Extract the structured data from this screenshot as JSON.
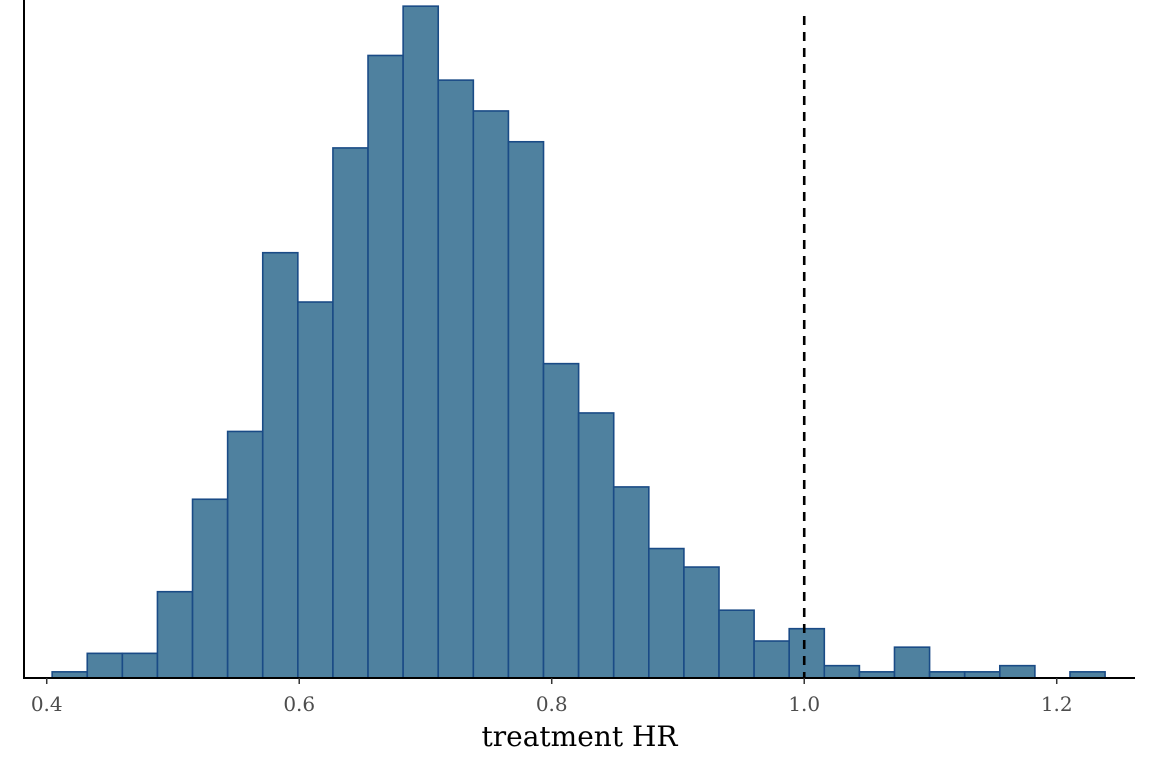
{
  "chart_data": {
    "type": "bar",
    "title": "",
    "xlabel": "treatment HR",
    "ylabel": "",
    "xlim": [
      0.382,
      1.262
    ],
    "ylim": [
      0,
      110
    ],
    "x_ticks": [
      0.4,
      0.6,
      0.8,
      1.0,
      1.2
    ],
    "x_tick_labels": [
      "0.4",
      "0.6",
      "0.8",
      "1.0",
      "1.2"
    ],
    "y_ticks_shown": false,
    "grid": false,
    "reference_line": {
      "x": 1.0,
      "style": "dashed"
    },
    "bar_fill": "#4f819f",
    "bar_edge": "#1a4b86",
    "bin_width": 0.0278,
    "bin_starts": [
      0.4043,
      0.4321,
      0.4599,
      0.4877,
      0.5155,
      0.5433,
      0.5711,
      0.5989,
      0.6267,
      0.6545,
      0.6823,
      0.7101,
      0.7379,
      0.7657,
      0.7935,
      0.8213,
      0.8491,
      0.8769,
      0.9047,
      0.9325,
      0.9603,
      0.9881,
      1.0159,
      1.0437,
      1.0715,
      1.0993,
      1.1271,
      1.1549,
      1.1827,
      1.2105
    ],
    "counts": [
      1,
      4,
      4,
      14,
      29,
      40,
      69,
      61,
      86,
      101,
      109,
      97,
      92,
      87,
      51,
      43,
      31,
      21,
      18,
      11,
      6,
      8,
      2,
      1,
      5,
      1,
      1,
      2,
      0,
      1
    ]
  }
}
